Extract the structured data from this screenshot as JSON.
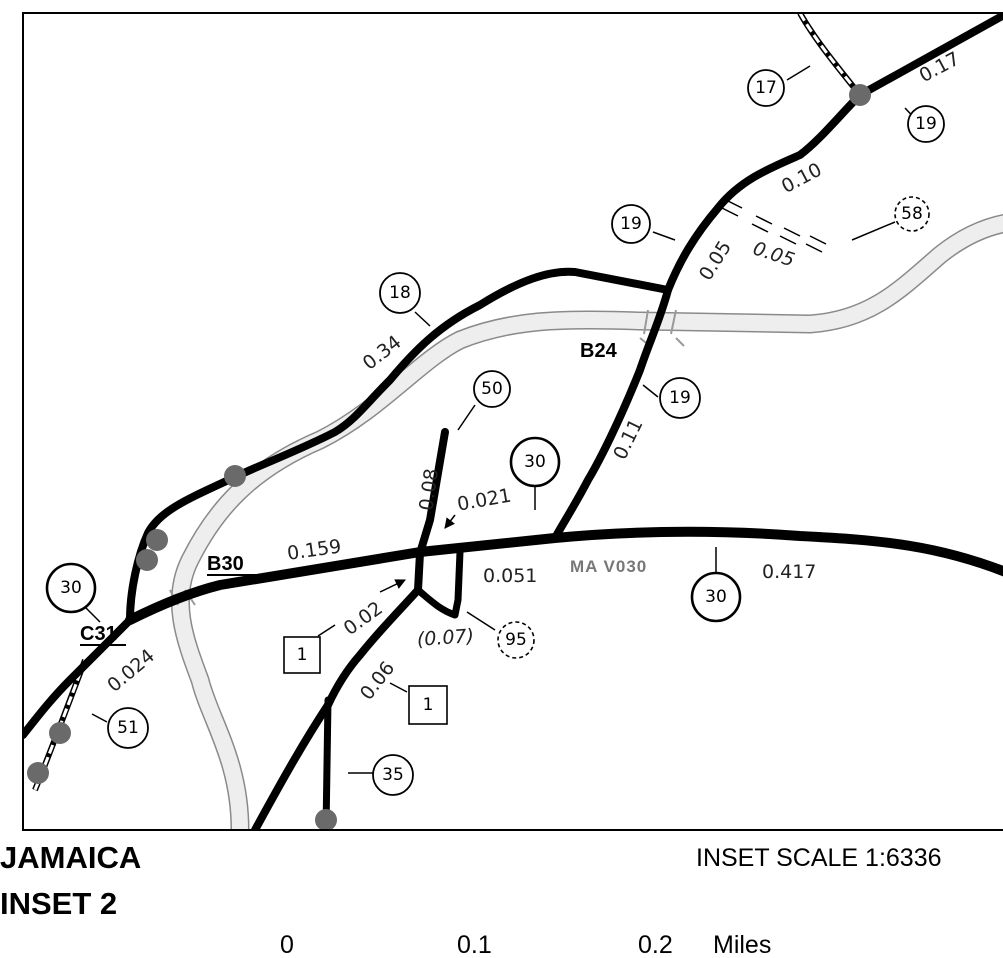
{
  "map": {
    "title_line1": "JAMAICA",
    "title_line2": "INSET 2",
    "scale_text": "INSET SCALE 1:6336",
    "scale_bar": {
      "tick_0": "0",
      "tick_1": "0.1",
      "tick_2": "0.2",
      "unit": "Miles"
    },
    "junction_labels": {
      "b30": "B30",
      "b24": "B24",
      "c31": "C31"
    },
    "road_name": "MA V030",
    "mileages": {
      "m_017": "0.17",
      "m_010": "0.10",
      "m_005a": "0.05",
      "m_005b": "0.05",
      "m_034": "0.34",
      "m_011": "0.11",
      "m_008": "0.08",
      "m_0021": "0.021",
      "m_0159": "0.159",
      "m_0051": "0.051",
      "m_0417": "0.417",
      "m_002": "0.02",
      "m_007": "(0.07)",
      "m_006": "0.06",
      "m_0024": "0.024"
    },
    "routes": {
      "r17": "17",
      "r19a": "19",
      "r19b": "19",
      "r19c": "19",
      "r58": "58",
      "r18": "18",
      "r50": "50",
      "r30a": "30",
      "r30b": "30",
      "r30c": "30",
      "r95": "95",
      "r51": "51",
      "r35": "35",
      "r1a": "1",
      "r1b": "1"
    },
    "colors": {
      "road": "#000000",
      "river_edge": "#8a8a8a",
      "river_fill": "#eeeeee",
      "dot": "#6a6a6a",
      "road_name": "#777777"
    }
  }
}
